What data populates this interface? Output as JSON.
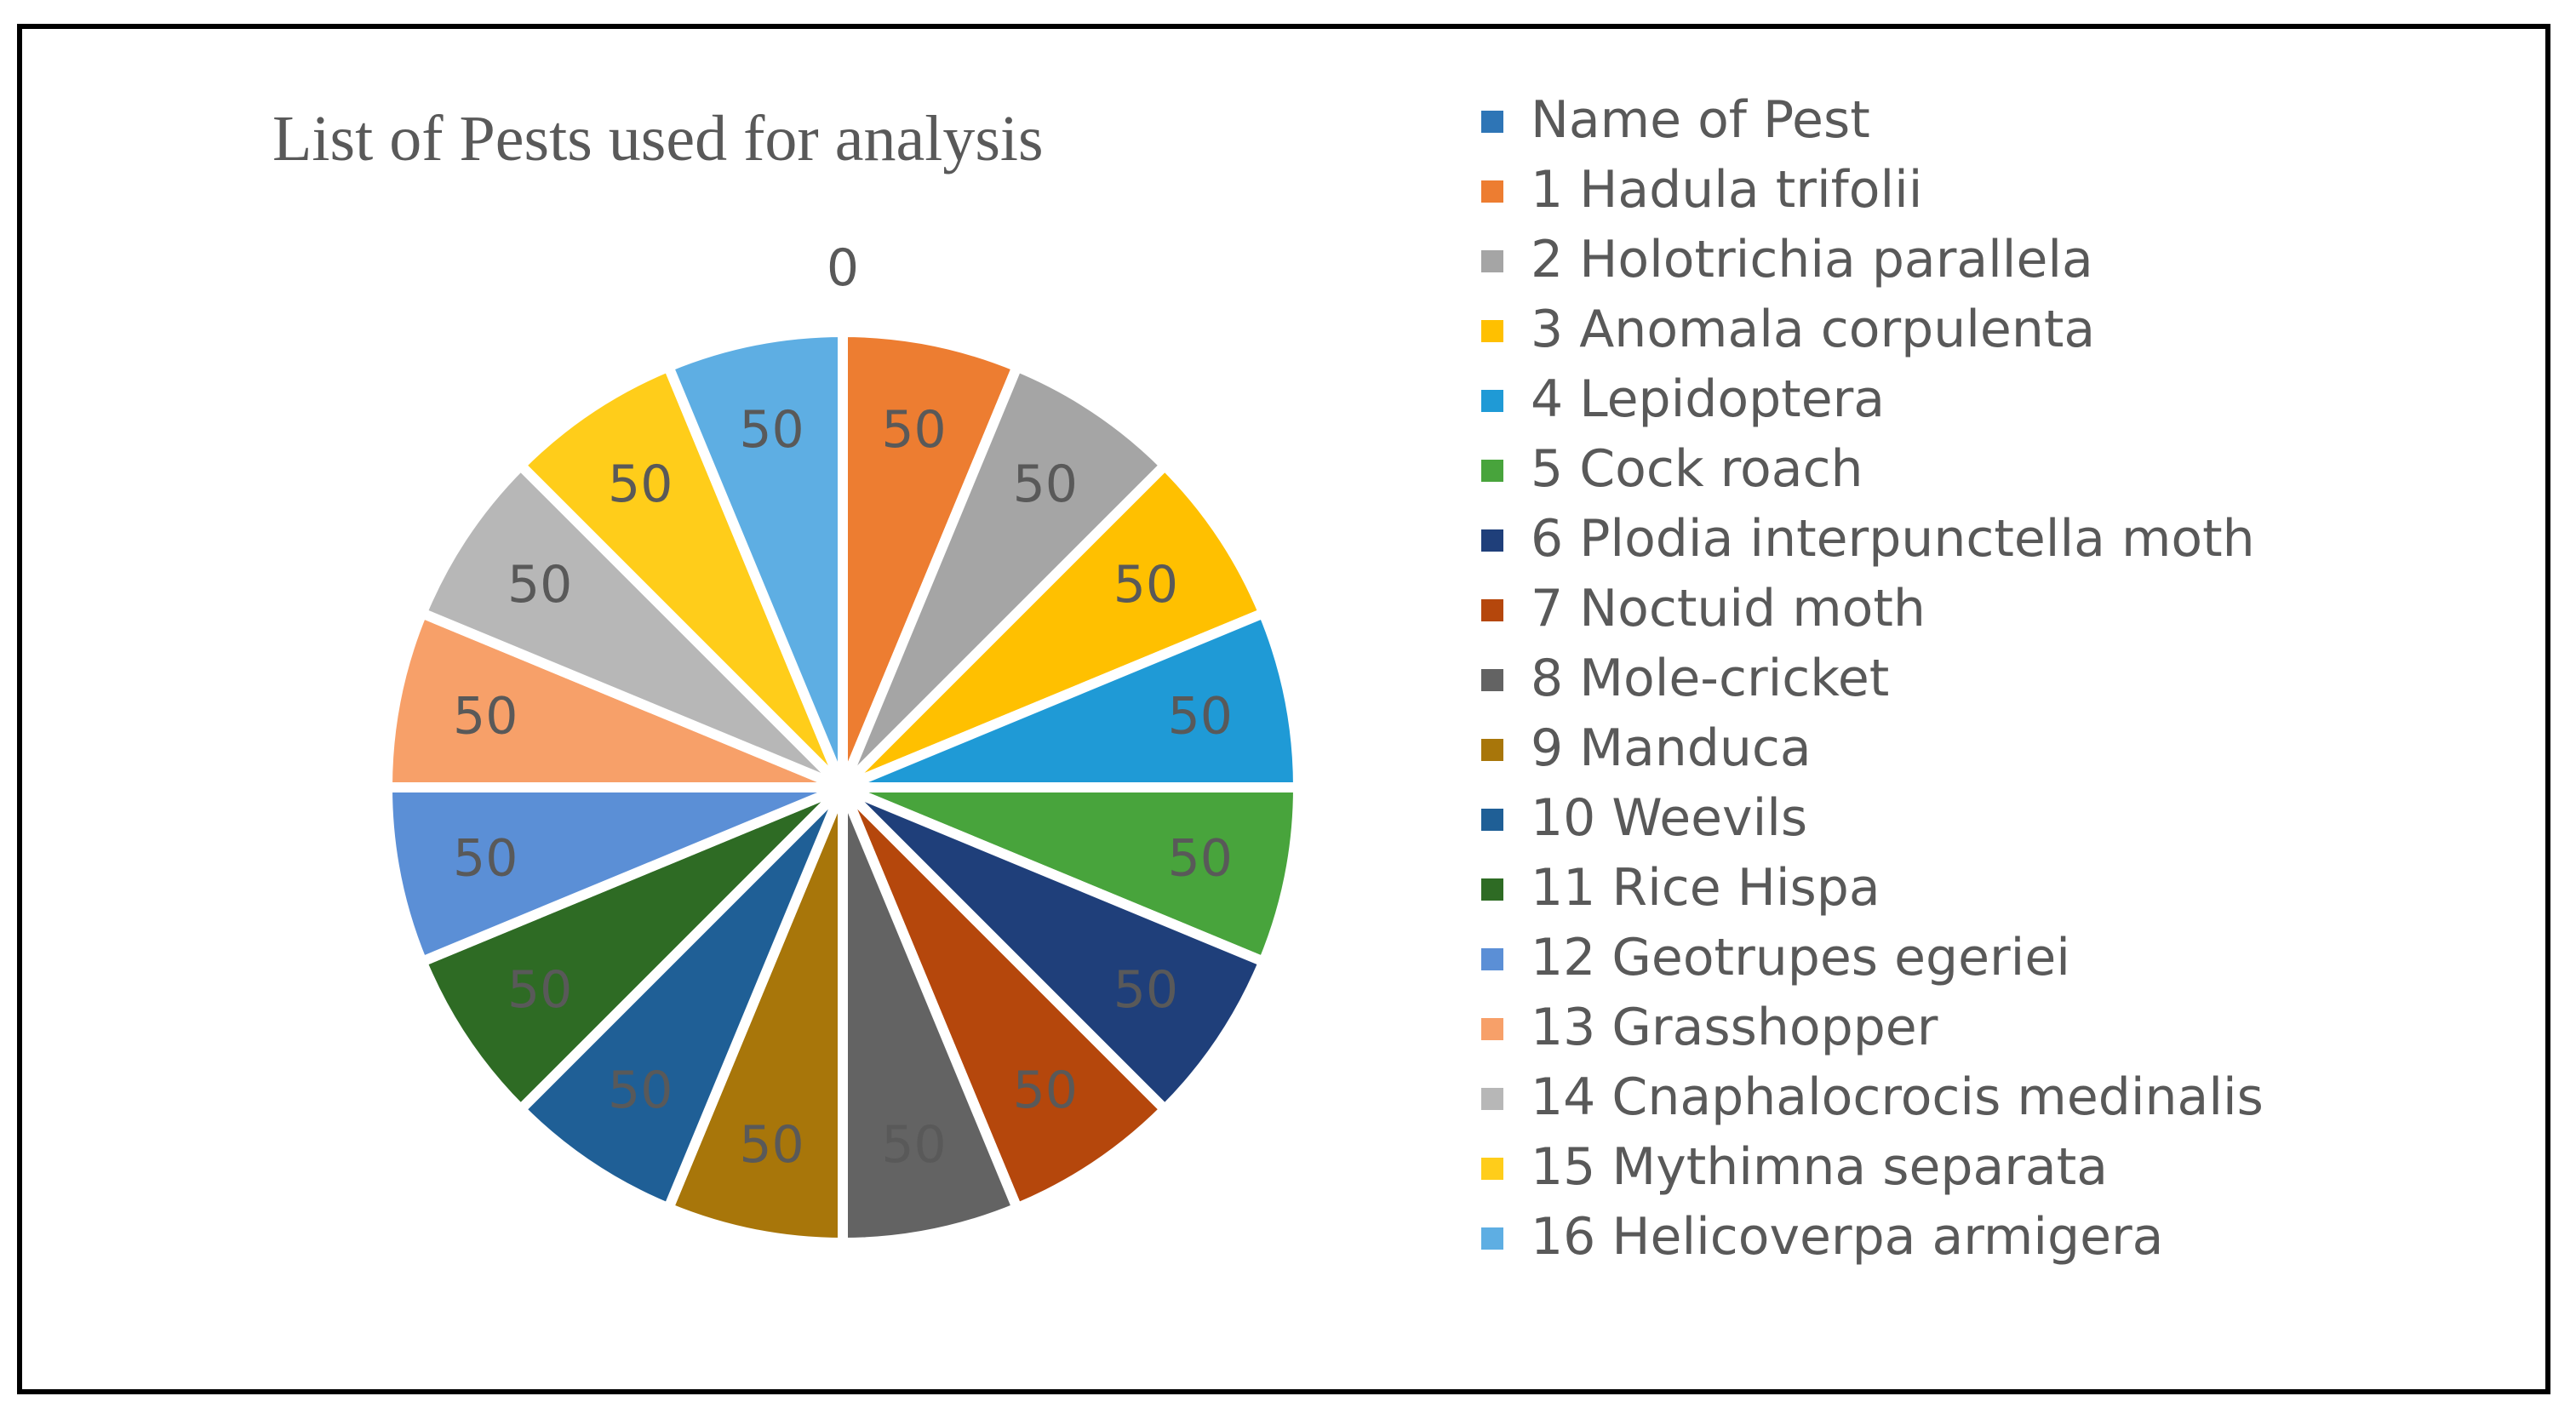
{
  "chart_data": {
    "type": "pie",
    "title": "List of Pests used for analysis",
    "categories": [
      "Name of Pest",
      "1 Hadula trifolii",
      "2 Holotrichia parallela",
      "3 Anomala corpulenta",
      "4 Lepidoptera",
      "5 Cock roach",
      "6 Plodia interpunctella moth",
      "7 Noctuid moth",
      "8 Mole-cricket",
      "9 Manduca",
      "10 Weevils",
      "11 Rice Hispa",
      "12 Geotrupes egeriei",
      "13 Grasshopper",
      "14 Cnaphalocrocis medinalis",
      "15 Mythimna separata",
      "16 Helicoverpa armigera"
    ],
    "values": [
      0,
      50,
      50,
      50,
      50,
      50,
      50,
      50,
      50,
      50,
      50,
      50,
      50,
      50,
      50,
      50,
      50
    ],
    "data_labels": [
      "0",
      "50",
      "50",
      "50",
      "50",
      "50",
      "50",
      "50",
      "50",
      "50",
      "50",
      "50",
      "50",
      "50",
      "50",
      "50",
      "50"
    ],
    "colors": [
      "#2E75B6",
      "#ED7D31",
      "#A5A5A5",
      "#FFC000",
      "#1F9AD6",
      "#48A43C",
      "#1F3F7A",
      "#B5470C",
      "#636363",
      "#A8760A",
      "#1F5F96",
      "#2E6B24",
      "#5B8FD6",
      "#F7A069",
      "#B7B7B7",
      "#FFCD1A",
      "#5EAEE3"
    ],
    "legend_position": "right"
  }
}
